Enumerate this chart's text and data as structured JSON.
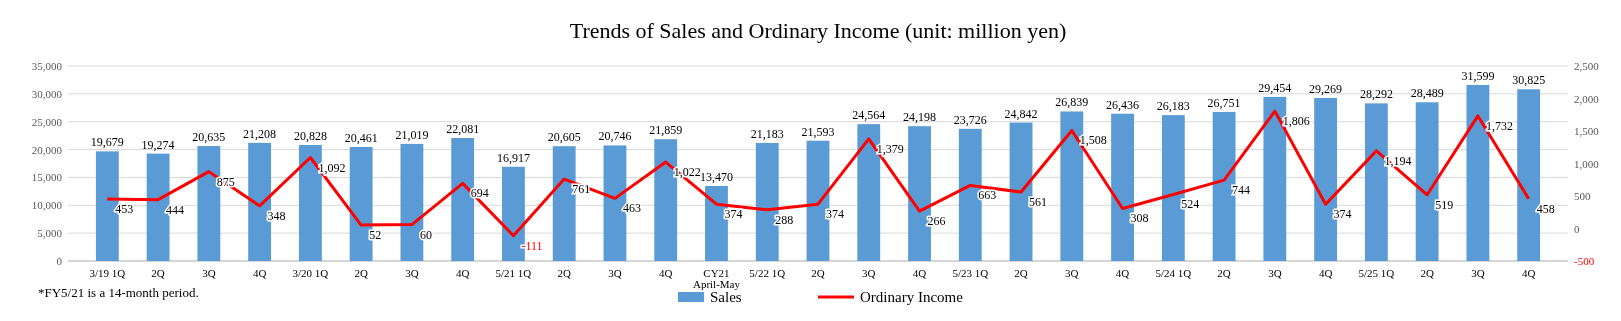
{
  "chart_data": {
    "type": "bar",
    "title": "Trends of Sales and Ordinary Income (unit: million yen)",
    "categories": [
      "3/19 1Q",
      "2Q",
      "3Q",
      "4Q",
      "3/20 1Q",
      "2Q",
      "3Q",
      "4Q",
      "5/21 1Q",
      "2Q",
      "3Q",
      "4Q",
      "CY21\nApril-May",
      "5/22 1Q",
      "2Q",
      "3Q",
      "4Q",
      "5/23 1Q",
      "2Q",
      "3Q",
      "4Q",
      "5/24 1Q",
      "2Q",
      "3Q",
      "4Q",
      "5/25 1Q",
      "2Q",
      "3Q",
      "4Q"
    ],
    "series": [
      {
        "name": "Sales",
        "axis": "y",
        "color": "#5b9bd5",
        "values": [
          19679,
          19274,
          20635,
          21208,
          20828,
          20461,
          21019,
          22081,
          16917,
          20605,
          20746,
          21859,
          13470,
          21183,
          21593,
          24564,
          24198,
          23726,
          24842,
          26839,
          26436,
          26183,
          26751,
          29454,
          29269,
          28292,
          28489,
          31599,
          30825
        ],
        "value_labels": [
          "19,679",
          "19,274",
          "20,635",
          "21,208",
          "20,828",
          "20,461",
          "21,019",
          "22,081",
          "16,917",
          "20,605",
          "20,746",
          "21,859",
          "13,470",
          "21,183",
          "21,593",
          "24,564",
          "24,198",
          "23,726",
          "24,842",
          "26,839",
          "26,436",
          "26,183",
          "26,751",
          "29,454",
          "29,269",
          "28,292",
          "28,489",
          "31,599",
          "30,825"
        ]
      },
      {
        "name": "Ordinary Income",
        "type": "line",
        "axis": "y2",
        "color": "#ff0000",
        "values": [
          453,
          444,
          875,
          348,
          1092,
          52,
          60,
          694,
          -111,
          761,
          463,
          1022,
          374,
          288,
          374,
          1379,
          266,
          663,
          561,
          1508,
          308,
          524,
          744,
          1806,
          374,
          1194,
          519,
          1732,
          458
        ],
        "value_labels": [
          "453",
          "444",
          "875",
          "348",
          "1,092",
          "52",
          "60",
          "694",
          "-111",
          "761",
          "463",
          "1,022",
          "374",
          "288",
          "374",
          "1,379",
          "266",
          "663",
          "561",
          "1,508",
          "308",
          "524",
          "744",
          "1,806",
          "374",
          "1,194",
          "519",
          "1,732",
          "458"
        ]
      }
    ],
    "ylim": [
      0,
      35000
    ],
    "yticks": [
      0,
      {
        "value": 5000,
        "label": "5,000"
      },
      {
        "value": 10000,
        "label": "10,000"
      },
      {
        "value": 15000,
        "label": "15,000"
      },
      {
        "value": 20000,
        "label": "20,000"
      },
      {
        "value": 25000,
        "label": "25,000"
      },
      {
        "value": 30000,
        "label": "30,000"
      },
      {
        "value": 35000,
        "label": "35,000"
      }
    ],
    "y2lim": [
      -500,
      2500
    ],
    "y2ticks": [
      -500,
      0,
      500,
      {
        "value": 1000,
        "label": "1,000"
      },
      {
        "value": 1500,
        "label": "1,500"
      },
      {
        "value": 2000,
        "label": "2,000"
      },
      {
        "value": 2500,
        "label": "2,500"
      }
    ],
    "grid": "y",
    "legend": "bottom",
    "marker": "none",
    "line_style": "solid",
    "annotations": [
      "*FY5/21 is a 14-month period."
    ]
  }
}
